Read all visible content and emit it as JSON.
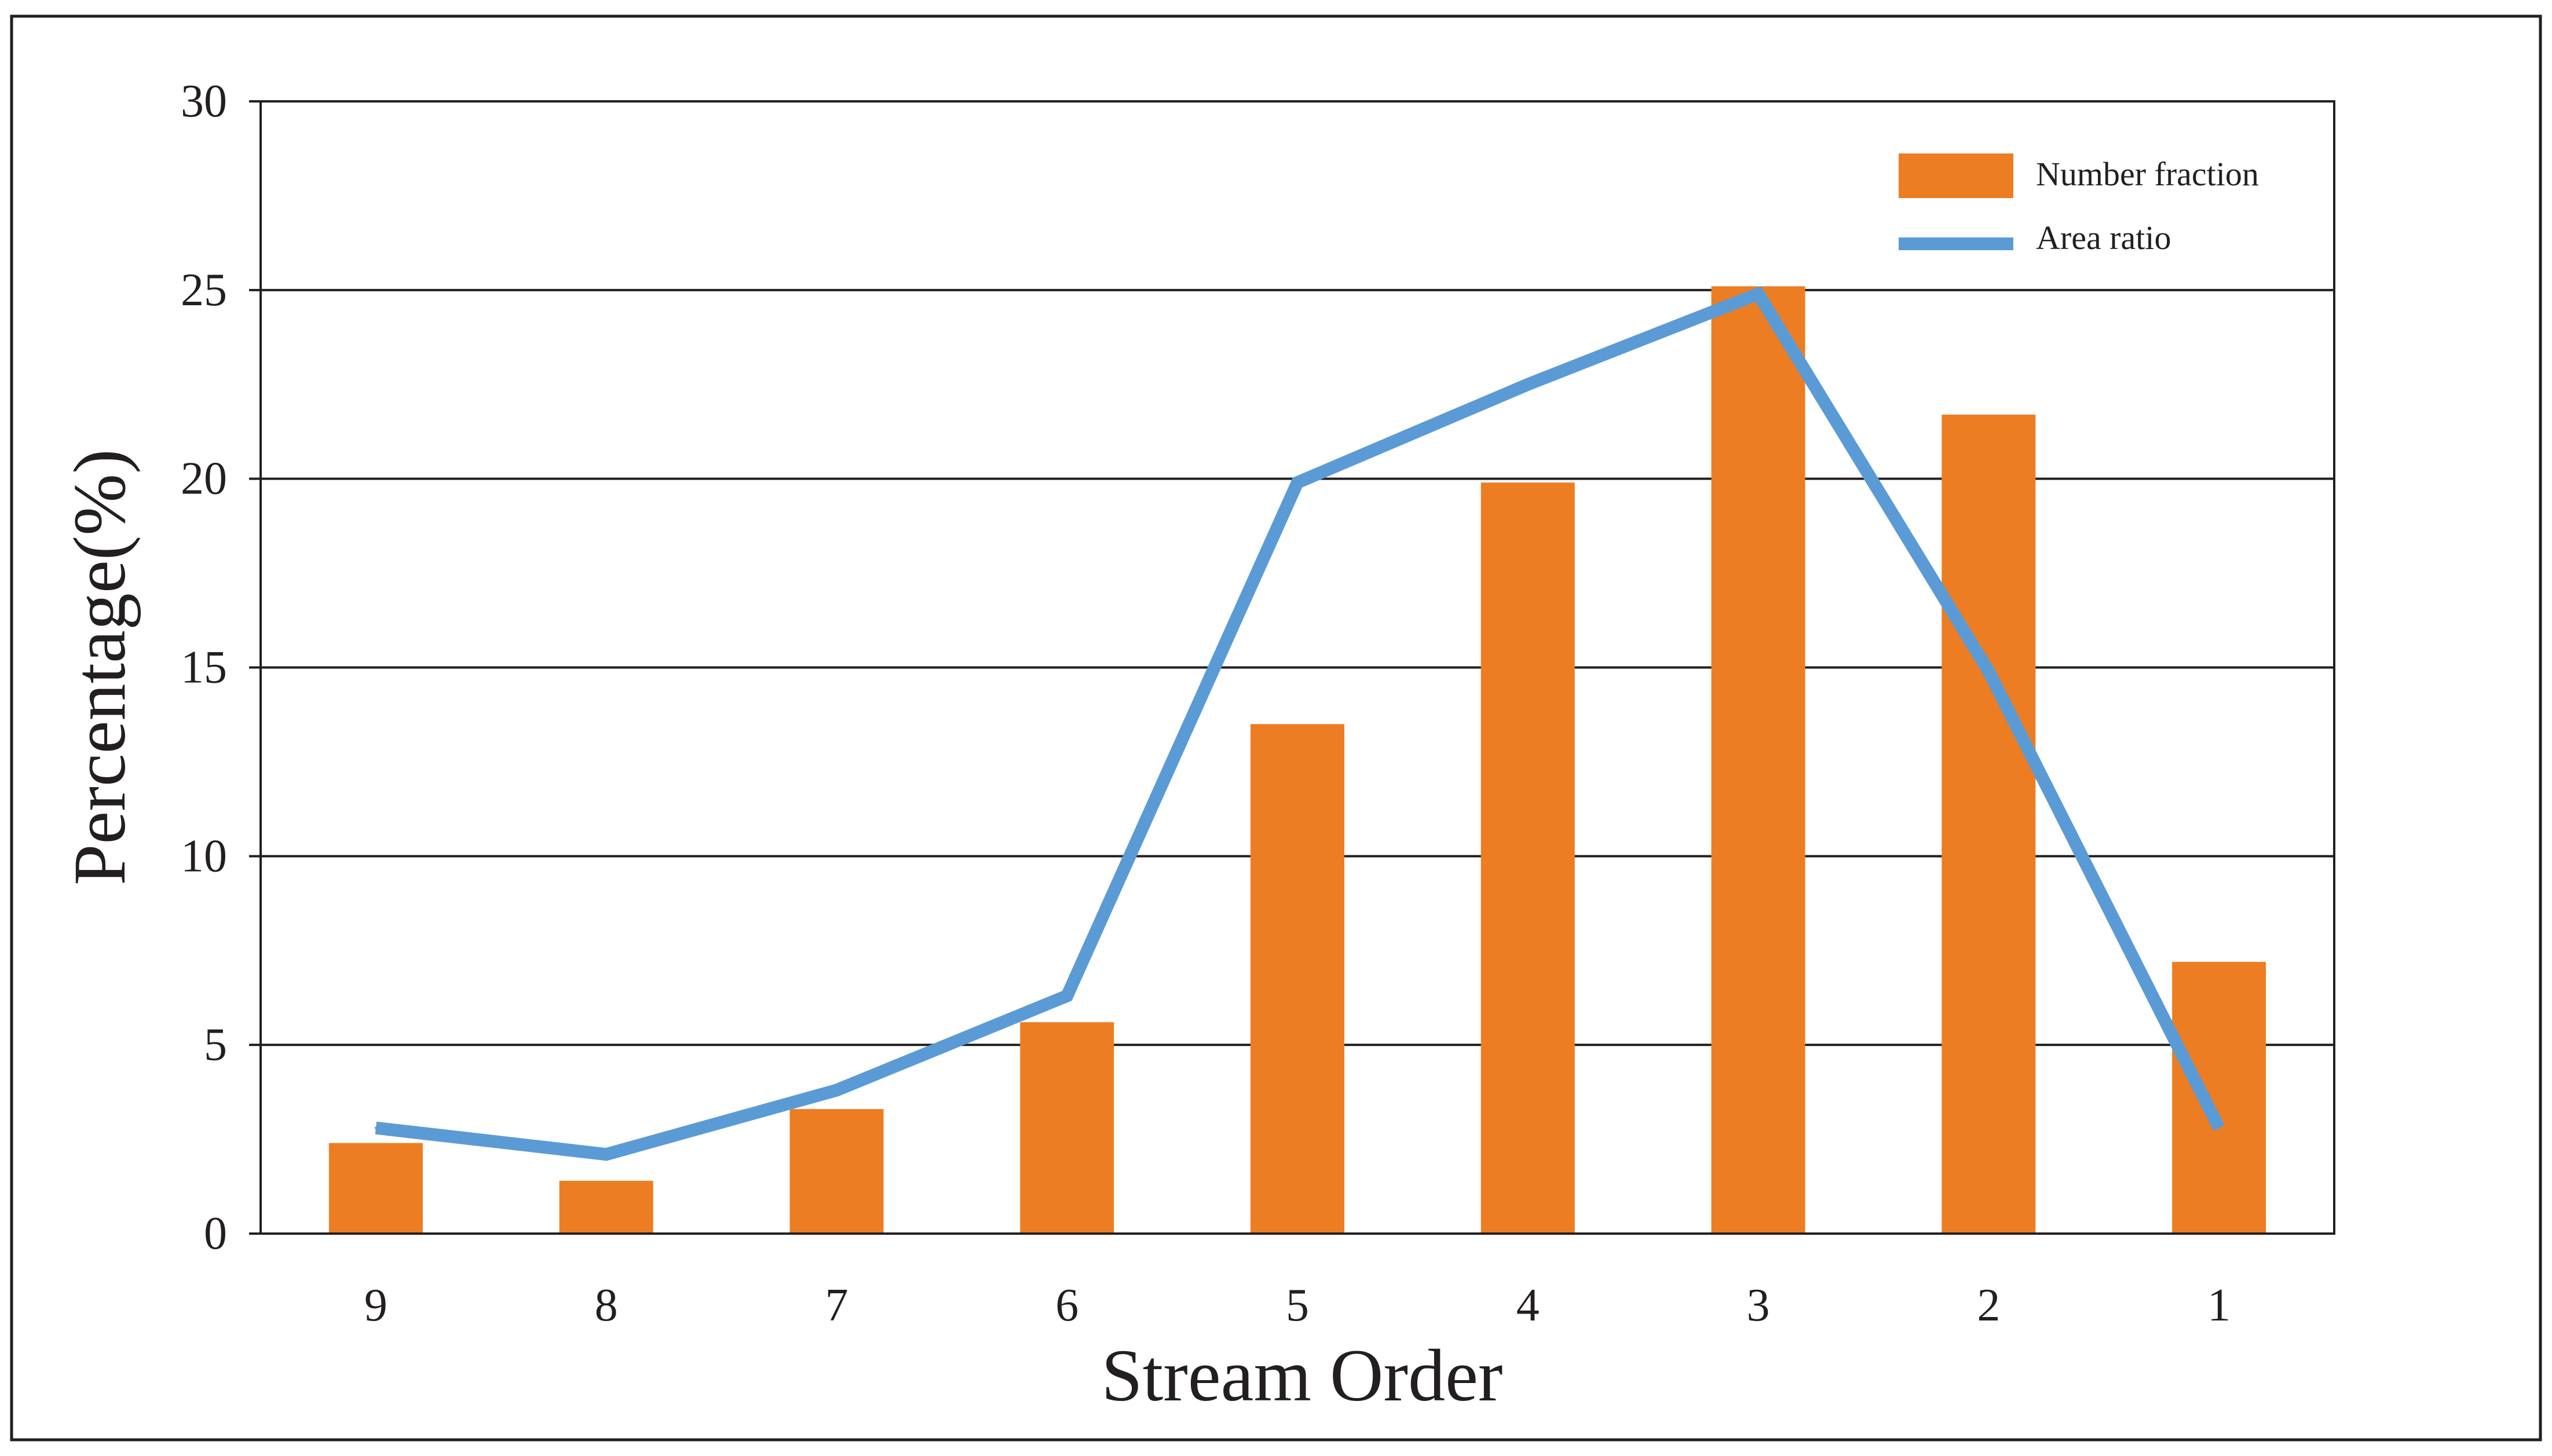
{
  "chart_data": {
    "type": "bar",
    "title": "",
    "xlabel": "Stream Order",
    "ylabel": "Percentage(%)",
    "categories": [
      "9",
      "8",
      "7",
      "6",
      "5",
      "4",
      "3",
      "2",
      "1"
    ],
    "ylim": [
      0,
      30
    ],
    "yticks": [
      "0",
      "5",
      "10",
      "15",
      "20",
      "25",
      "30"
    ],
    "grid": true,
    "legend_position": "top-right",
    "series": [
      {
        "name": "Number fraction",
        "type": "bar",
        "color": "#ED7D22",
        "values": [
          2.4,
          1.4,
          3.3,
          5.6,
          13.5,
          19.9,
          25.1,
          21.7,
          7.2
        ]
      },
      {
        "name": "Area ratio",
        "type": "line",
        "color": "#5B9BD5",
        "values": [
          2.8,
          2.1,
          3.8,
          6.3,
          19.9,
          22.5,
          24.9,
          14.9,
          2.8
        ]
      }
    ]
  }
}
